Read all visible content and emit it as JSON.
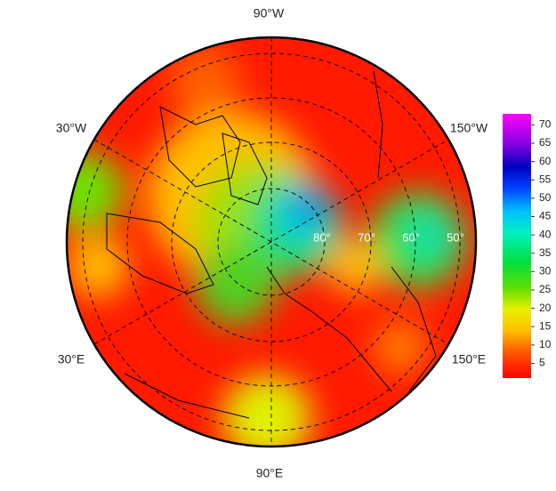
{
  "map": {
    "longitude_labels": [
      "90°W",
      "30°W",
      "150°W",
      "30°E",
      "150°E",
      "90°E"
    ],
    "latitude_labels": [
      "80°",
      "70°",
      "60°",
      "50°"
    ],
    "colorbar": {
      "range": [
        1,
        73
      ],
      "ticks": [
        5,
        10,
        15,
        20,
        25,
        30,
        35,
        40,
        45,
        50,
        55,
        60,
        65,
        70
      ]
    }
  }
}
